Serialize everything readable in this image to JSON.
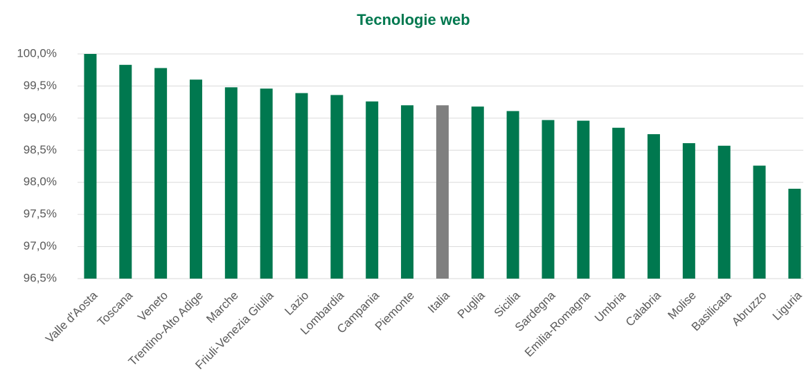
{
  "chart_data": {
    "type": "bar",
    "title": "Tecnologie web",
    "categories": [
      "Valle d'Aosta",
      "Toscana",
      "Veneto",
      "Trentino-Alto Adige",
      "Marche",
      "Friuli-Venezia Giulia",
      "Lazio",
      "Lombardia",
      "Campania",
      "Piemonte",
      "Italia",
      "Puglia",
      "Sicilia",
      "Sardegna",
      "Emilia-Romagna",
      "Umbria",
      "Calabria",
      "Molise",
      "Basilicata",
      "Abruzzo",
      "Liguria"
    ],
    "values": [
      100.0,
      99.83,
      99.78,
      99.6,
      99.48,
      99.46,
      99.39,
      99.36,
      99.26,
      99.2,
      99.2,
      99.18,
      99.11,
      98.97,
      98.96,
      98.85,
      98.75,
      98.61,
      98.57,
      98.26,
      97.9
    ],
    "colors": [
      "#00784f",
      "#00784f",
      "#00784f",
      "#00784f",
      "#00784f",
      "#00784f",
      "#00784f",
      "#00784f",
      "#00784f",
      "#00784f",
      "#7f7f7f",
      "#00784f",
      "#00784f",
      "#00784f",
      "#00784f",
      "#00784f",
      "#00784f",
      "#00784f",
      "#00784f",
      "#00784f",
      "#00784f"
    ],
    "ylim": [
      96.5,
      100.0
    ],
    "yticks": [
      {
        "value": 96.5,
        "label": "96,5%"
      },
      {
        "value": 97.0,
        "label": "97,0%"
      },
      {
        "value": 97.5,
        "label": "97,5%"
      },
      {
        "value": 98.0,
        "label": "98,0%"
      },
      {
        "value": 98.5,
        "label": "98,5%"
      },
      {
        "value": 99.0,
        "label": "99,0%"
      },
      {
        "value": 99.5,
        "label": "99,5%"
      },
      {
        "value": 100.0,
        "label": "100,0%"
      }
    ],
    "grid": true
  }
}
